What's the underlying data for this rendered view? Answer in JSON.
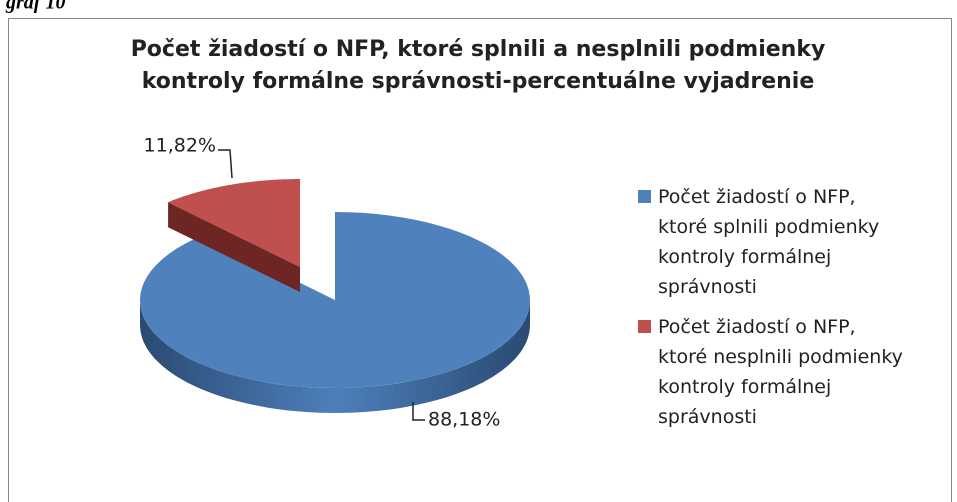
{
  "caption": "graf 10",
  "chart_data": {
    "type": "pie",
    "title": "Počet žiadostí o NFP, ktoré splnili a nesplnili podmienky\nkontroly formálne správnosti-percentuálne vyjadrenie",
    "categories": [
      "Počet žiadostí o NFP,\nktoré splnili podmienky\nkontroly formálnej\nsprávnosti",
      "Počet žiadostí o NFP,\nktoré nesplnili podmienky\nkontroly formálnej\nsprávnosti"
    ],
    "values": [
      88.18,
      11.82
    ],
    "value_labels": [
      "88,18%",
      "11,82%"
    ],
    "colors": [
      "#4f81bd",
      "#c0504d"
    ],
    "legend": "right"
  }
}
